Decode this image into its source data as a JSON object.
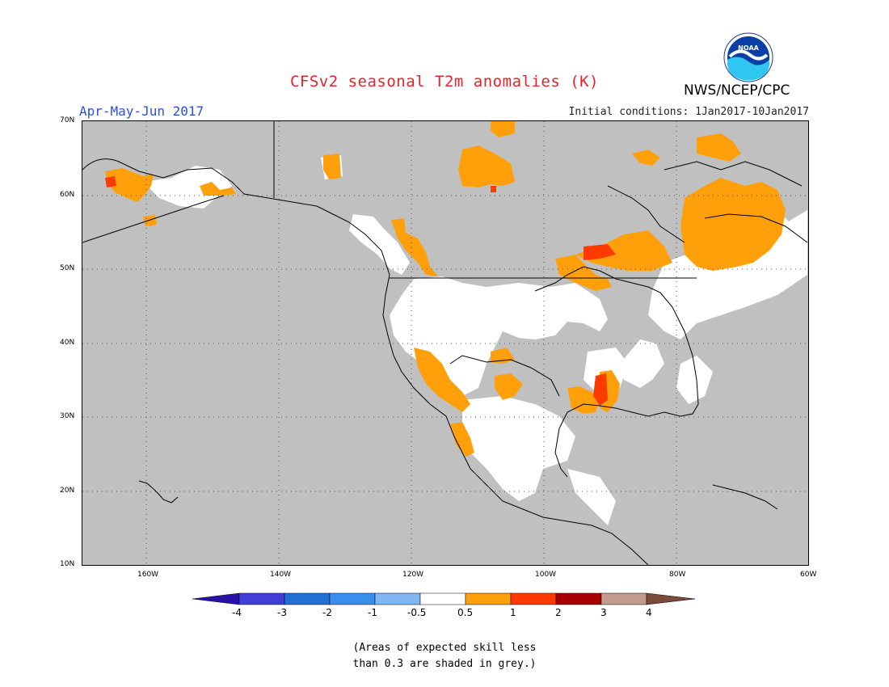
{
  "title": "CFSv2 seasonal T2m anomalies (K)",
  "organization": "NWS/NCEP/CPC",
  "logo_text": "NOAA",
  "season_label": "Apr-May-Jun 2017",
  "initial_conditions": "Initial conditions: 1Jan2017-10Jan2017",
  "latitude_labels": [
    "70N",
    "60N",
    "50N",
    "40N",
    "30N",
    "20N",
    "10N"
  ],
  "longitude_labels": [
    "160W",
    "140W",
    "120W",
    "100W",
    "80W",
    "60W"
  ],
  "colorbar": {
    "ticks": [
      "-4",
      "-3",
      "-2",
      "-1",
      "-0.5",
      "0.5",
      "1",
      "2",
      "3",
      "4"
    ],
    "colors": [
      "#2a0fa8",
      "#3f3fd8",
      "#1f6fd6",
      "#3a8ef0",
      "#7eb7f2",
      "#ffffff",
      "#ffa00a",
      "#ff3a00",
      "#a80000",
      "#c49a8c",
      "#7a4a3a"
    ]
  },
  "colors": {
    "skill_grey": "#c0c0c0",
    "near_normal": "#ffffff",
    "warm_05_1": "#ffa00a",
    "warm_1_2": "#ff3a00"
  },
  "note": [
    "(Areas of expected skill less",
    "than 0.3 are shaded in grey.)"
  ]
}
